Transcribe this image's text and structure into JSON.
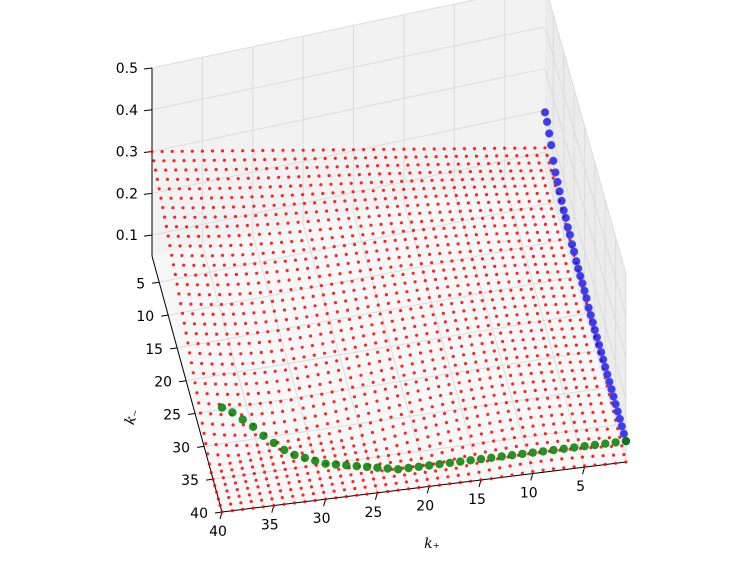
{
  "chart_data": {
    "type": "scatter",
    "projection": "3d",
    "title": "",
    "xlabel": "k₊",
    "ylabel": "k₋",
    "zlabel": "",
    "x_ticks": [
      "40",
      "35",
      "30",
      "25",
      "20",
      "15",
      "10",
      "5"
    ],
    "y_ticks": [
      "5",
      "10",
      "15",
      "20",
      "25",
      "30",
      "35",
      "40"
    ],
    "z_ticks": [
      "0.1",
      "0.2",
      "0.3",
      "0.4",
      "0.5"
    ],
    "xlim": [
      1,
      40
    ],
    "ylim": [
      1,
      40
    ],
    "zlim": [
      0.05,
      0.5
    ],
    "grid": true,
    "grid_spacing": 1,
    "series": [
      {
        "role": "surface-grid",
        "color": "#ff0000",
        "marker_size": "small",
        "x_range": [
          1,
          40
        ],
        "y_range": [
          1,
          40
        ]
      },
      {
        "role": "max-over-k-plus",
        "color": "#0000ff",
        "marker_size": "medium",
        "points": [
          {
            "y": 1,
            "z": 0.195
          },
          {
            "y": 2,
            "z": 0.19
          },
          {
            "y": 3,
            "z": 0.18
          },
          {
            "y": 4,
            "z": 0.17
          },
          {
            "y": 5,
            "z": 0.15
          },
          {
            "y": 6,
            "z": 0.14
          },
          {
            "y": 7,
            "z": 0.135
          },
          {
            "y": 8,
            "z": 0.13
          },
          {
            "y": 9,
            "z": 0.125
          },
          {
            "y": 10,
            "z": 0.12
          },
          {
            "y": 11,
            "z": 0.12
          },
          {
            "y": 12,
            "z": 0.115
          },
          {
            "y": 13,
            "z": 0.115
          },
          {
            "y": 14,
            "z": 0.11
          },
          {
            "y": 15,
            "z": 0.11
          },
          {
            "y": 16,
            "z": 0.105
          },
          {
            "y": 17,
            "z": 0.105
          },
          {
            "y": 18,
            "z": 0.105
          },
          {
            "y": 19,
            "z": 0.105
          },
          {
            "y": 20,
            "z": 0.105
          },
          {
            "y": 21,
            "z": 0.105
          },
          {
            "y": 22,
            "z": 0.1
          },
          {
            "y": 23,
            "z": 0.1
          },
          {
            "y": 24,
            "z": 0.1
          },
          {
            "y": 25,
            "z": 0.1
          },
          {
            "y": 26,
            "z": 0.1
          },
          {
            "y": 27,
            "z": 0.1
          },
          {
            "y": 28,
            "z": 0.1
          },
          {
            "y": 29,
            "z": 0.1
          },
          {
            "y": 30,
            "z": 0.1
          },
          {
            "y": 31,
            "z": 0.1
          },
          {
            "y": 32,
            "z": 0.1
          },
          {
            "y": 33,
            "z": 0.1
          },
          {
            "y": 34,
            "z": 0.1
          },
          {
            "y": 35,
            "z": 0.1
          },
          {
            "y": 36,
            "z": 0.1
          },
          {
            "y": 37,
            "z": 0.1
          },
          {
            "y": 38,
            "z": 0.1
          },
          {
            "y": 39,
            "z": 0.1
          },
          {
            "y": 40,
            "z": 0.1
          }
        ]
      },
      {
        "role": "max-over-k-minus",
        "color": "#008000",
        "marker_size": "large",
        "points": [
          {
            "x": 40,
            "z": 0.3
          },
          {
            "x": 39,
            "z": 0.285
          },
          {
            "x": 38,
            "z": 0.265
          },
          {
            "x": 37,
            "z": 0.245
          },
          {
            "x": 36,
            "z": 0.22
          },
          {
            "x": 35,
            "z": 0.2
          },
          {
            "x": 34,
            "z": 0.18
          },
          {
            "x": 33,
            "z": 0.165
          },
          {
            "x": 32,
            "z": 0.155
          },
          {
            "x": 31,
            "z": 0.145
          },
          {
            "x": 30,
            "z": 0.135
          },
          {
            "x": 29,
            "z": 0.13
          },
          {
            "x": 28,
            "z": 0.125
          },
          {
            "x": 27,
            "z": 0.12
          },
          {
            "x": 26,
            "z": 0.115
          },
          {
            "x": 25,
            "z": 0.11
          },
          {
            "x": 24,
            "z": 0.105
          },
          {
            "x": 23,
            "z": 0.1
          },
          {
            "x": 22,
            "z": 0.1
          },
          {
            "x": 21,
            "z": 0.1
          },
          {
            "x": 20,
            "z": 0.1
          },
          {
            "x": 19,
            "z": 0.1
          },
          {
            "x": 18,
            "z": 0.1
          },
          {
            "x": 17,
            "z": 0.1
          },
          {
            "x": 16,
            "z": 0.1
          },
          {
            "x": 15,
            "z": 0.1
          },
          {
            "x": 14,
            "z": 0.1
          },
          {
            "x": 13,
            "z": 0.1
          },
          {
            "x": 12,
            "z": 0.1
          },
          {
            "x": 11,
            "z": 0.1
          },
          {
            "x": 10,
            "z": 0.1
          },
          {
            "x": 9,
            "z": 0.1
          },
          {
            "x": 8,
            "z": 0.1
          },
          {
            "x": 7,
            "z": 0.1
          },
          {
            "x": 6,
            "z": 0.1
          },
          {
            "x": 5,
            "z": 0.1
          },
          {
            "x": 4,
            "z": 0.1
          },
          {
            "x": 3,
            "z": 0.1
          },
          {
            "x": 2,
            "z": 0.1
          },
          {
            "x": 1,
            "z": 0.1
          }
        ]
      }
    ]
  }
}
